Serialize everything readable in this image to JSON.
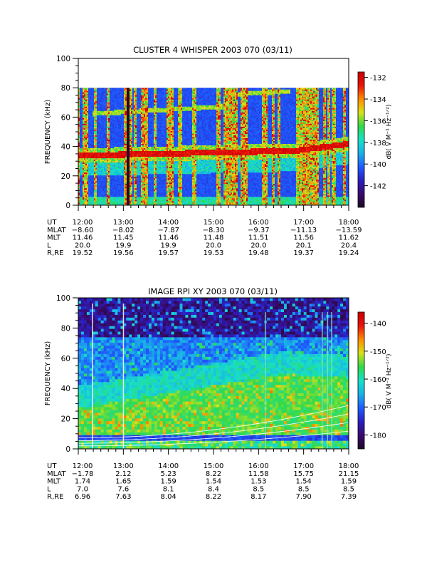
{
  "chart_data": [
    {
      "type": "heatmap",
      "title": "CLUSTER 4 WHISPER 2003 070 (03/11)",
      "ylabel": "FREQUENCY (kHz)",
      "ylim": [
        0,
        100
      ],
      "y_ticks": [
        "0",
        "20",
        "40",
        "60",
        "80",
        "100"
      ],
      "x_ticks": [
        "12:00",
        "13:00",
        "14:00",
        "15:00",
        "16:00",
        "17:00",
        "18:00"
      ],
      "colorbar": {
        "label": "dB( V M⁻¹ Hz⁻¹ᐟ²)",
        "range": [
          -144,
          -131.5
        ],
        "ticks": [
          "-132",
          "-134",
          "-136",
          "-138",
          "-140",
          "-142"
        ],
        "tick_values": [
          -132,
          -134,
          -136,
          -138,
          -140,
          -142
        ]
      },
      "ephemeris": [
        {
          "label": "UT",
          "values": [
            "12:00",
            "13:00",
            "14:00",
            "15:00",
            "16:00",
            "17:00",
            "18:00"
          ]
        },
        {
          "label": "MLAT",
          "values": [
            "−8.60",
            "−8.02",
            "−7.87",
            "−8.30",
            "−9.37",
            "−11.13",
            "−13.59"
          ]
        },
        {
          "label": "MLT",
          "values": [
            "11.46",
            "11.45",
            "11.46",
            "11.48",
            "11.51",
            "11.56",
            "11.62"
          ]
        },
        {
          "label": "L",
          "values": [
            "20.0",
            "19.9",
            "19.9",
            "20.0",
            "20.0",
            "20.1",
            "20.4"
          ]
        },
        {
          "label": "R,RE",
          "values": [
            "19.52",
            "19.56",
            "19.57",
            "19.53",
            "19.48",
            "19.37",
            "19.24"
          ]
        }
      ]
    },
    {
      "type": "heatmap",
      "title": "IMAGE RPI XY 2003 070 (03/11)",
      "ylabel": "FREQUENCY (kHz)",
      "ylim": [
        0,
        100
      ],
      "y_ticks": [
        "0",
        "20",
        "40",
        "60",
        "80",
        "100"
      ],
      "x_ticks": [
        "12:00",
        "13:00",
        "14:00",
        "15:00",
        "16:00",
        "17:00",
        "18:00"
      ],
      "colorbar": {
        "label": "dB( V M⁻¹ Hz⁻¹ᐟ²)",
        "range": [
          -185,
          -136
        ],
        "ticks": [
          "-140",
          "-150",
          "-160",
          "-170",
          "-180"
        ],
        "tick_values": [
          -140,
          -150,
          -160,
          -170,
          -180
        ]
      },
      "ephemeris": [
        {
          "label": "UT",
          "values": [
            "12:00",
            "13:00",
            "14:00",
            "15:00",
            "16:00",
            "17:00",
            "18:00"
          ]
        },
        {
          "label": "MLAT",
          "values": [
            "−1.78",
            "2.12",
            "5.23",
            "8.22",
            "11.58",
            "15.75",
            "21.15"
          ]
        },
        {
          "label": "MLT",
          "values": [
            "1.74",
            "1.65",
            "1.59",
            "1.54",
            "1.53",
            "1.54",
            "1.59"
          ]
        },
        {
          "label": "L",
          "values": [
            "7.0",
            "7.6",
            "8.1",
            "8.4",
            "8.5",
            "8.5",
            "8.5"
          ]
        },
        {
          "label": "R,RE",
          "values": [
            "6.96",
            "7.63",
            "8.04",
            "8.22",
            "8.17",
            "7.90",
            "7.39"
          ]
        }
      ]
    }
  ],
  "colors": {
    "colormap": [
      "#1a0a24",
      "#3a0a6e",
      "#2a20c0",
      "#1f5cff",
      "#19b3e6",
      "#18e0c8",
      "#33d94a",
      "#d8e21a",
      "#ff8c00",
      "#e8140c",
      "#c80000"
    ],
    "white_lines": "#ffffff"
  }
}
